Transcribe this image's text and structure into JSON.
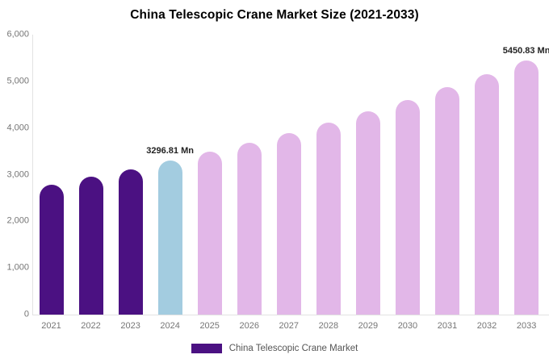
{
  "chart_data": {
    "type": "bar",
    "title": "China Telescopic Crane Market Size (2021-2033)",
    "categories": [
      "2021",
      "2022",
      "2023",
      "2024",
      "2025",
      "2026",
      "2027",
      "2028",
      "2029",
      "2030",
      "2031",
      "2032",
      "2033"
    ],
    "values": [
      2789,
      2949,
      3118,
      3296.81,
      3486,
      3686,
      3898,
      4122,
      4358,
      4608,
      4873,
      5153,
      5450.83
    ],
    "unit": "Mn",
    "labeled_points": [
      {
        "category": "2024",
        "label": "3296.81 Mn"
      },
      {
        "category": "2033",
        "label": "5450.83 Mn"
      }
    ],
    "bar_colors": [
      "#4B1182",
      "#4B1182",
      "#4B1182",
      "#A3CCE0",
      "#E2B7E8",
      "#E2B7E8",
      "#E2B7E8",
      "#E2B7E8",
      "#E2B7E8",
      "#E2B7E8",
      "#E2B7E8",
      "#E2B7E8",
      "#E2B7E8"
    ],
    "color_roles": {
      "historical_2021_2023": "#4B1182",
      "base_year_2024": "#A3CCE0",
      "forecast_2025_2033": "#E2B7E8"
    },
    "xlabel": "",
    "ylabel": "",
    "ylim": [
      0,
      6000
    ],
    "yticks": [
      {
        "value": 0,
        "label": "0"
      },
      {
        "value": 1000,
        "label": "1,000"
      },
      {
        "value": 2000,
        "label": "2,000"
      },
      {
        "value": 3000,
        "label": "3,000"
      },
      {
        "value": 4000,
        "label": "4,000"
      },
      {
        "value": 5000,
        "label": "5,000"
      },
      {
        "value": 6000,
        "label": "6,000"
      }
    ],
    "grid": false,
    "legend": {
      "position": "bottom",
      "label": "China Telescopic Crane Market",
      "swatch_color": "#4B1182"
    }
  }
}
